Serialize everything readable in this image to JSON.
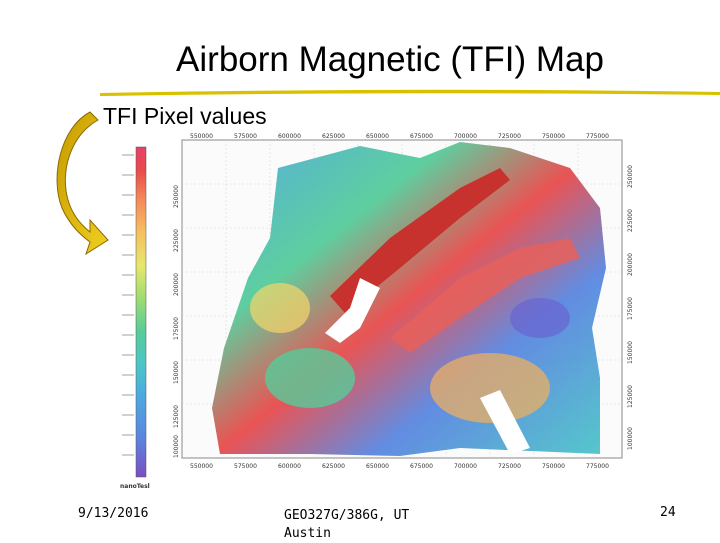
{
  "slide": {
    "title": "Airborn Magnetic (TFI) Map",
    "subtitle": "TFI Pixel values",
    "footer": {
      "date": "9/13/2016",
      "course": "GEO327G/386G, UT Austin",
      "page_number": "24"
    }
  },
  "colorbar": {
    "unit": "nanoTesla",
    "colors": [
      "#e8406a",
      "#f26a8c",
      "#e84b4b",
      "#f58a5a",
      "#f5b15a",
      "#f5d66a",
      "#e6e86a",
      "#b5e06a",
      "#7dd87a",
      "#56cc9a",
      "#4cc6c8",
      "#4ca8e0",
      "#5a86e0",
      "#6a64d0",
      "#7a4ec0"
    ]
  },
  "map": {
    "x_ticks": [
      "550000",
      "575000",
      "600000",
      "625000",
      "650000",
      "675000",
      "700000",
      "725000",
      "750000",
      "775000"
    ],
    "y_ticks_left": [
      "250000",
      "225000",
      "200000",
      "175000",
      "150000",
      "125000",
      "100000"
    ],
    "y_ticks_right": [
      "250000",
      "225000",
      "200000",
      "175000",
      "150000",
      "125000",
      "100000"
    ]
  }
}
